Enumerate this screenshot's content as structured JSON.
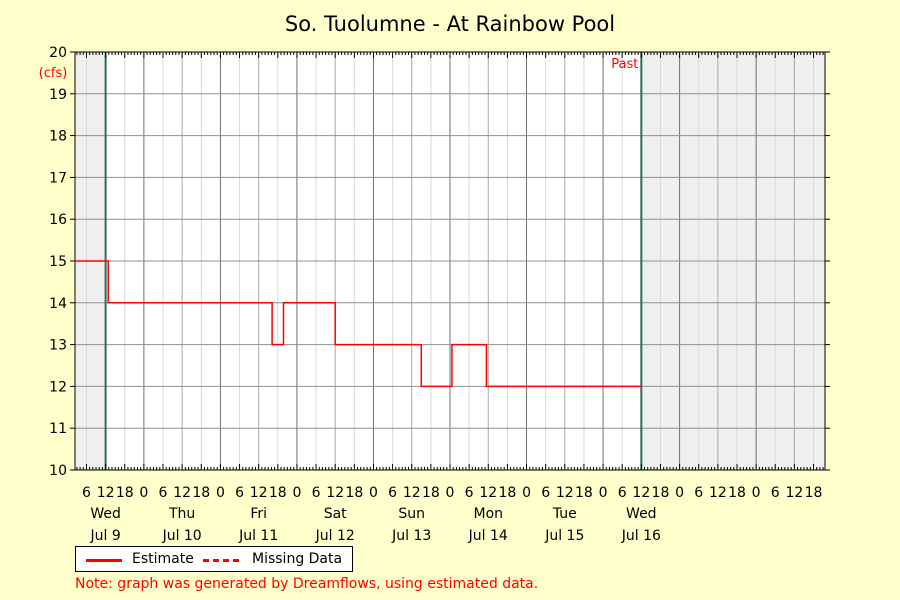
{
  "chart_data": {
    "type": "line",
    "title": "So. Tuolumne - At Rainbow Pool",
    "ylabel": "(cfs)",
    "ylim": [
      10,
      20
    ],
    "yticks": [
      "10",
      "11",
      "12",
      "13",
      "14",
      "15",
      "16",
      "17",
      "18",
      "19",
      "20"
    ],
    "xlim_hours": [
      -9.6,
      225.6
    ],
    "x_hour_tick_labels": [
      {
        "h": -6,
        "label": "6"
      },
      {
        "h": 0,
        "label": "12"
      },
      {
        "h": 6,
        "label": "18"
      },
      {
        "h": 12,
        "label": "0"
      },
      {
        "h": 18,
        "label": "6"
      },
      {
        "h": 24,
        "label": "12"
      },
      {
        "h": 30,
        "label": "18"
      },
      {
        "h": 36,
        "label": "0"
      },
      {
        "h": 42,
        "label": "6"
      },
      {
        "h": 48,
        "label": "12"
      },
      {
        "h": 54,
        "label": "18"
      },
      {
        "h": 60,
        "label": "0"
      },
      {
        "h": 66,
        "label": "6"
      },
      {
        "h": 72,
        "label": "12"
      },
      {
        "h": 78,
        "label": "18"
      },
      {
        "h": 84,
        "label": "0"
      },
      {
        "h": 90,
        "label": "6"
      },
      {
        "h": 96,
        "label": "12"
      },
      {
        "h": 102,
        "label": "18"
      },
      {
        "h": 108,
        "label": "0"
      },
      {
        "h": 114,
        "label": "6"
      },
      {
        "h": 120,
        "label": "12"
      },
      {
        "h": 126,
        "label": "18"
      },
      {
        "h": 132,
        "label": "0"
      },
      {
        "h": 138,
        "label": "6"
      },
      {
        "h": 144,
        "label": "12"
      },
      {
        "h": 150,
        "label": "18"
      },
      {
        "h": 156,
        "label": "0"
      },
      {
        "h": 162,
        "label": "6"
      },
      {
        "h": 168,
        "label": "12"
      },
      {
        "h": 174,
        "label": "18"
      },
      {
        "h": 180,
        "label": "0"
      },
      {
        "h": 186,
        "label": "6"
      },
      {
        "h": 192,
        "label": "12"
      },
      {
        "h": 198,
        "label": "18"
      },
      {
        "h": 204,
        "label": "0"
      },
      {
        "h": 210,
        "label": "6"
      },
      {
        "h": 216,
        "label": "12"
      },
      {
        "h": 222,
        "label": "18"
      }
    ],
    "days": [
      {
        "h": 0,
        "weekday": "Wed",
        "date": "Jul 9"
      },
      {
        "h": 24,
        "weekday": "Thu",
        "date": "Jul 10"
      },
      {
        "h": 48,
        "weekday": "Fri",
        "date": "Jul 11"
      },
      {
        "h": 72,
        "weekday": "Sat",
        "date": "Jul 12"
      },
      {
        "h": 96,
        "weekday": "Sun",
        "date": "Jul 13"
      },
      {
        "h": 120,
        "weekday": "Mon",
        "date": "Jul 14"
      },
      {
        "h": 144,
        "weekday": "Tue",
        "date": "Jul 15"
      },
      {
        "h": 168,
        "weekday": "Wed",
        "date": "Jul 16"
      }
    ],
    "period_start_hour": 0,
    "period_end_hour": 168,
    "period_end_label": "Past",
    "series": [
      {
        "name": "Estimate",
        "color": "#ff0000",
        "step_points": [
          [
            -9.6,
            15
          ],
          [
            0.8,
            15
          ],
          [
            0.8,
            14
          ],
          [
            52.2,
            14
          ],
          [
            52.2,
            13
          ],
          [
            55.8,
            13
          ],
          [
            55.8,
            14
          ],
          [
            72.0,
            14
          ],
          [
            72.0,
            13
          ],
          [
            99.0,
            13
          ],
          [
            99.0,
            12
          ],
          [
            108.6,
            12
          ],
          [
            108.6,
            13
          ],
          [
            119.4,
            13
          ],
          [
            119.4,
            12
          ],
          [
            168.0,
            12
          ]
        ]
      }
    ],
    "legend": [
      {
        "label": "Estimate",
        "style": "solid"
      },
      {
        "label": "Missing Data",
        "style": "dashed"
      }
    ],
    "note": "Note: graph was generated by Dreamflows, using estimated data."
  }
}
